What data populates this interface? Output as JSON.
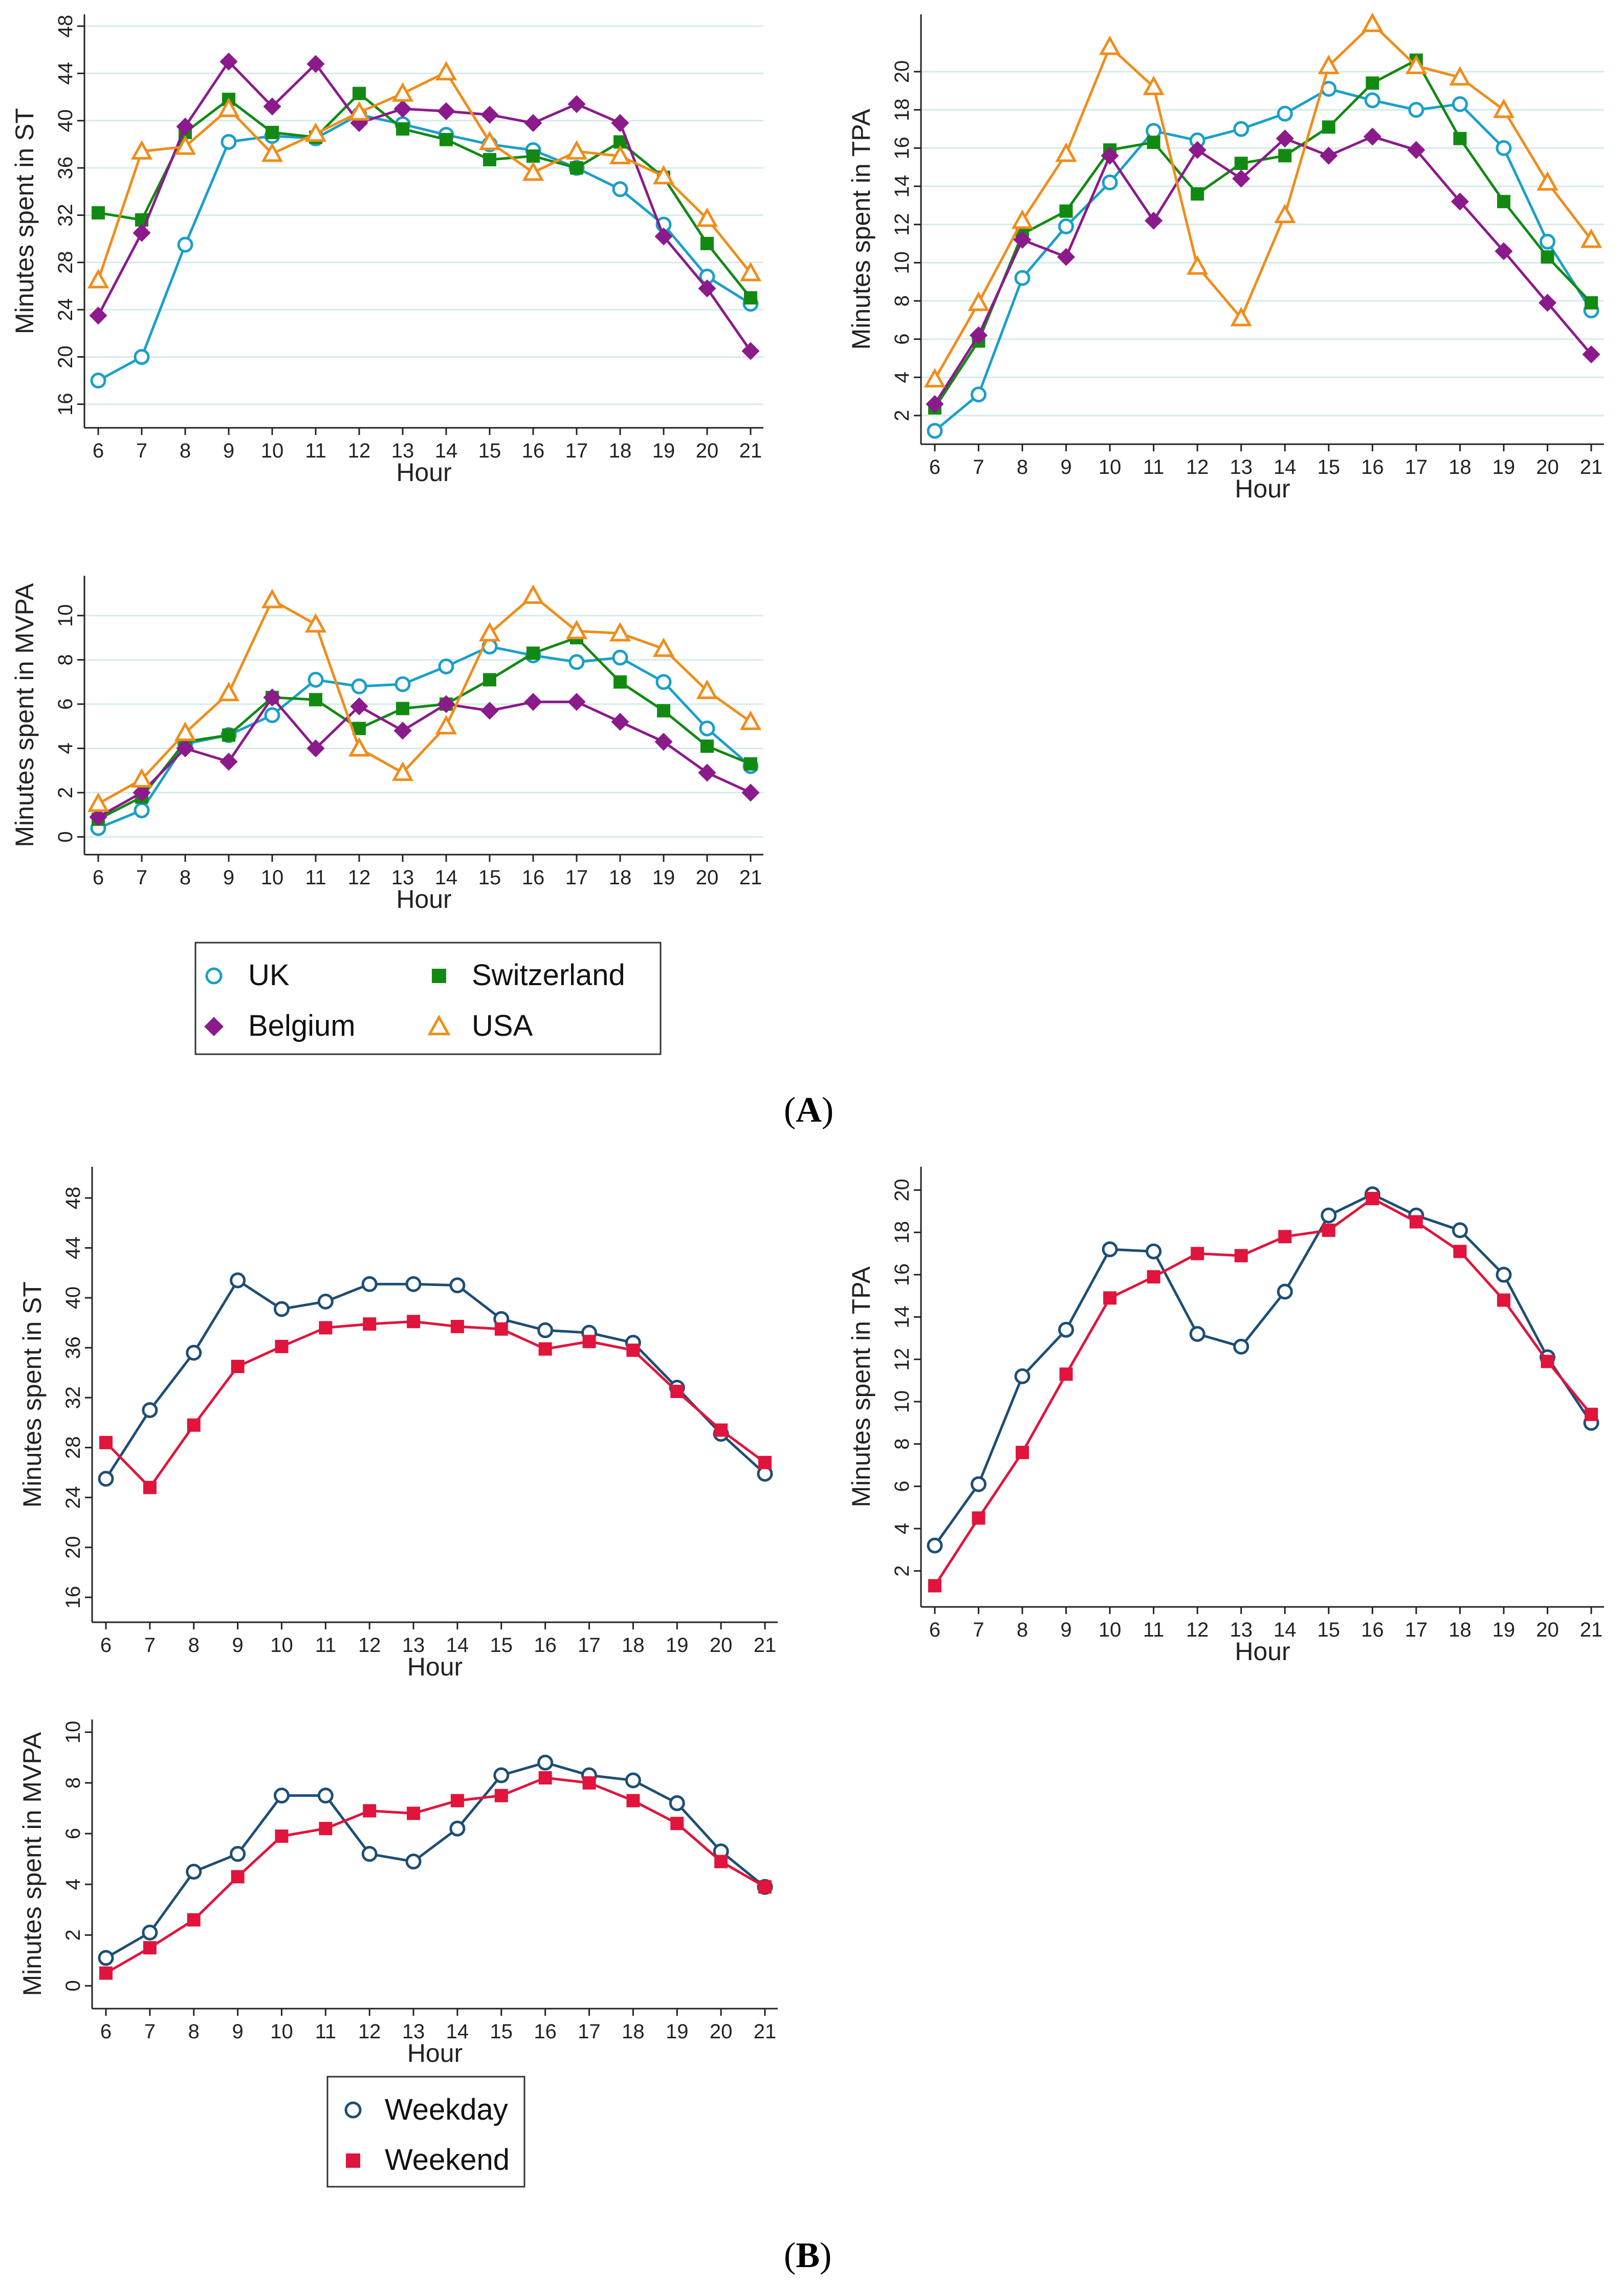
{
  "panels": [
    {
      "id": "A",
      "label": "A"
    },
    {
      "id": "B",
      "label": "B"
    }
  ],
  "series_styles": {
    "UK": {
      "color": "#1a9fc9",
      "marker": "circle-hollow"
    },
    "Switzerland": {
      "color": "#128a12",
      "marker": "square-filled"
    },
    "Belgium": {
      "color": "#8b1a8b",
      "marker": "diamond-filled"
    },
    "USA": {
      "color": "#f08c1a",
      "marker": "triangle-hollow"
    },
    "Weekday": {
      "color": "#1d4e74",
      "marker": "circle-hollow"
    },
    "Weekend": {
      "color": "#e0143c",
      "marker": "square-filled"
    }
  },
  "legends": [
    {
      "panel": "A",
      "entries": [
        "UK",
        "Switzerland",
        "Belgium",
        "USA"
      ]
    },
    {
      "panel": "B",
      "entries": [
        "Weekday",
        "Weekend"
      ]
    }
  ],
  "chart_data": [
    {
      "id": "A-ST",
      "panel": "A",
      "type": "line",
      "xlabel": "Hour",
      "ylabel": "Minutes spent in ST",
      "x": [
        6,
        7,
        8,
        9,
        10,
        11,
        12,
        13,
        14,
        15,
        16,
        17,
        18,
        19,
        20,
        21
      ],
      "ylim": [
        14,
        49
      ],
      "yticks": [
        16,
        20,
        24,
        28,
        32,
        36,
        40,
        44,
        48
      ],
      "grid": true,
      "series": [
        {
          "name": "UK",
          "values": [
            18,
            20,
            29.5,
            38.2,
            38.7,
            38.5,
            40.5,
            39.7,
            38.8,
            38,
            37.5,
            36,
            34.2,
            31.2,
            26.8,
            24.5
          ]
        },
        {
          "name": "Switzerland",
          "values": [
            32.2,
            31.6,
            39,
            41.8,
            39,
            38.6,
            42.3,
            39.3,
            38.4,
            36.7,
            37,
            36,
            38.2,
            35.2,
            29.6,
            25
          ]
        },
        {
          "name": "Belgium",
          "values": [
            23.5,
            30.5,
            39.5,
            45,
            41.2,
            44.8,
            39.8,
            41,
            40.8,
            40.5,
            39.8,
            41.4,
            39.8,
            30.2,
            25.8,
            20.5
          ]
        },
        {
          "name": "USA",
          "values": [
            26.5,
            37.4,
            37.8,
            41,
            37.2,
            38.9,
            40.7,
            42.3,
            44.1,
            38.2,
            35.6,
            37.4,
            37,
            35.3,
            31.7,
            27.1
          ]
        }
      ]
    },
    {
      "id": "A-TPA",
      "panel": "A",
      "type": "line",
      "xlabel": "Hour",
      "ylabel": "Minutes spent in TPA",
      "x": [
        6,
        7,
        8,
        9,
        10,
        11,
        12,
        13,
        14,
        15,
        16,
        17,
        18,
        19,
        20,
        21
      ],
      "ylim": [
        0.5,
        23
      ],
      "yticks": [
        2,
        4,
        6,
        8,
        10,
        12,
        14,
        16,
        18,
        20
      ],
      "grid": true,
      "series": [
        {
          "name": "UK",
          "values": [
            1.2,
            3.1,
            9.2,
            11.9,
            14.2,
            16.9,
            16.4,
            17,
            17.8,
            19.1,
            18.5,
            18,
            18.3,
            16,
            11.1,
            7.5
          ]
        },
        {
          "name": "Switzerland",
          "values": [
            2.4,
            5.9,
            11.5,
            12.7,
            15.9,
            16.3,
            13.6,
            15.2,
            15.6,
            17.1,
            19.4,
            20.6,
            16.5,
            13.2,
            10.3,
            7.9
          ]
        },
        {
          "name": "Belgium",
          "values": [
            2.6,
            6.2,
            11.2,
            10.3,
            15.6,
            12.2,
            15.9,
            14.4,
            16.5,
            15.6,
            16.6,
            15.9,
            13.2,
            10.6,
            7.9,
            5.2
          ]
        },
        {
          "name": "USA",
          "values": [
            3.9,
            7.9,
            12.2,
            15.7,
            21.3,
            19.2,
            9.8,
            7.1,
            12.5,
            20.3,
            22.5,
            20.3,
            19.7,
            18,
            14.2,
            11.2
          ]
        }
      ]
    },
    {
      "id": "A-MVPA",
      "panel": "A",
      "type": "line",
      "xlabel": "Hour",
      "ylabel": "Minutes spent in MVPA",
      "x": [
        6,
        7,
        8,
        9,
        10,
        11,
        12,
        13,
        14,
        15,
        16,
        17,
        18,
        19,
        20,
        21
      ],
      "ylim": [
        -0.8,
        11.8
      ],
      "yticks": [
        0,
        2,
        4,
        6,
        8,
        10
      ],
      "grid": true,
      "series": [
        {
          "name": "UK",
          "values": [
            0.4,
            1.2,
            4.2,
            4.6,
            5.5,
            7.1,
            6.8,
            6.9,
            7.7,
            8.6,
            8.2,
            7.9,
            8.1,
            7,
            4.9,
            3.2
          ]
        },
        {
          "name": "Switzerland",
          "values": [
            0.8,
            1.8,
            4.3,
            4.6,
            6.3,
            6.2,
            4.9,
            5.8,
            6,
            7.1,
            8.3,
            9,
            7,
            5.7,
            4.1,
            3.3
          ]
        },
        {
          "name": "Belgium",
          "values": [
            0.9,
            2,
            4,
            3.4,
            6.3,
            4,
            5.9,
            4.8,
            6,
            5.7,
            6.1,
            6.1,
            5.2,
            4.3,
            2.9,
            2
          ]
        },
        {
          "name": "USA",
          "values": [
            1.5,
            2.6,
            4.7,
            6.5,
            10.7,
            9.6,
            4,
            2.9,
            5,
            9.2,
            10.9,
            9.3,
            9.2,
            8.5,
            6.6,
            5.2
          ]
        }
      ]
    },
    {
      "id": "B-ST",
      "panel": "B",
      "type": "line",
      "xlabel": "Hour",
      "ylabel": "Minutes spent in ST",
      "x": [
        6,
        7,
        8,
        9,
        10,
        11,
        12,
        13,
        14,
        15,
        16,
        17,
        18,
        19,
        20,
        21
      ],
      "ylim": [
        14,
        50.5
      ],
      "yticks": [
        16,
        20,
        24,
        28,
        32,
        36,
        40,
        44,
        48
      ],
      "grid": false,
      "series": [
        {
          "name": "Weekday",
          "values": [
            25.5,
            31,
            35.6,
            41.4,
            39.1,
            39.7,
            41.1,
            41.1,
            41,
            38.3,
            37.4,
            37.2,
            36.4,
            32.8,
            29.1,
            25.9
          ]
        },
        {
          "name": "Weekend",
          "values": [
            28.4,
            24.8,
            29.8,
            34.5,
            36.1,
            37.6,
            37.9,
            38.1,
            37.7,
            37.5,
            35.9,
            36.5,
            35.8,
            32.5,
            29.4,
            26.8
          ]
        }
      ]
    },
    {
      "id": "B-TPA",
      "panel": "B",
      "type": "line",
      "xlabel": "Hour",
      "ylabel": "Minutes spent in TPA",
      "x": [
        6,
        7,
        8,
        9,
        10,
        11,
        12,
        13,
        14,
        15,
        16,
        17,
        18,
        19,
        20,
        21
      ],
      "ylim": [
        0.3,
        21.1
      ],
      "yticks": [
        2,
        4,
        6,
        8,
        10,
        12,
        14,
        16,
        18,
        20
      ],
      "grid": false,
      "series": [
        {
          "name": "Weekday",
          "values": [
            3.2,
            6.1,
            11.2,
            13.4,
            17.2,
            17.1,
            13.2,
            12.6,
            15.2,
            18.8,
            19.8,
            18.8,
            18.1,
            16,
            12.1,
            9
          ]
        },
        {
          "name": "Weekend",
          "values": [
            1.3,
            4.5,
            7.6,
            11.3,
            14.9,
            15.9,
            17,
            16.9,
            17.8,
            18.1,
            19.6,
            18.5,
            17.1,
            14.8,
            11.9,
            9.4
          ]
        }
      ]
    },
    {
      "id": "B-MVPA",
      "panel": "B",
      "type": "line",
      "xlabel": "Hour",
      "ylabel": "Minutes spent in MVPA",
      "x": [
        6,
        7,
        8,
        9,
        10,
        11,
        12,
        13,
        14,
        15,
        16,
        17,
        18,
        19,
        20,
        21
      ],
      "ylim": [
        -0.9,
        10.5
      ],
      "yticks": [
        0,
        2,
        4,
        6,
        8,
        10
      ],
      "grid": false,
      "series": [
        {
          "name": "Weekday",
          "values": [
            1.1,
            2.1,
            4.5,
            5.2,
            7.5,
            7.5,
            5.2,
            4.9,
            6.2,
            8.3,
            8.8,
            8.3,
            8.1,
            7.2,
            5.3,
            3.9
          ]
        },
        {
          "name": "Weekend",
          "values": [
            0.5,
            1.5,
            2.6,
            4.3,
            5.9,
            6.2,
            6.9,
            6.8,
            7.3,
            7.5,
            8.2,
            8,
            7.3,
            6.4,
            4.9,
            3.9
          ]
        }
      ]
    }
  ]
}
